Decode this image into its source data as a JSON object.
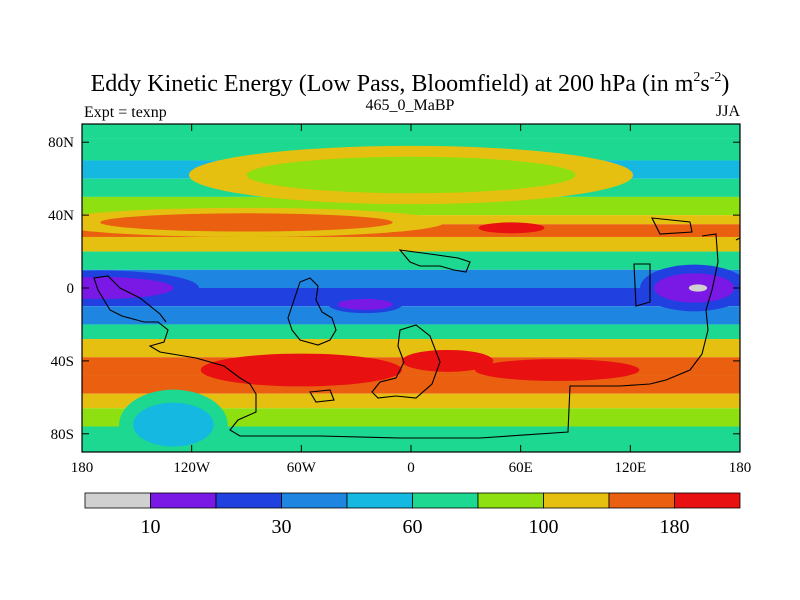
{
  "chart_data": {
    "type": "heatmap",
    "title": "Eddy Kinetic Energy (Low Pass, Bloomfield) at 200 hPa (in m",
    "title_units": {
      "sup1": "2",
      "s": "s",
      "sup2": "-2",
      "close": ")"
    },
    "left_string": "Expt = texnp",
    "center_string": "465_0_MaBP",
    "right_string": "JJA",
    "xlabel": "",
    "ylabel": "",
    "xlim": [
      -180,
      180
    ],
    "ylim": [
      -90,
      90
    ],
    "x_ticks": [
      {
        "value": -180,
        "label": "180"
      },
      {
        "value": -120,
        "label": "120W"
      },
      {
        "value": -60,
        "label": "60W"
      },
      {
        "value": 0,
        "label": "0"
      },
      {
        "value": 60,
        "label": "60E"
      },
      {
        "value": 120,
        "label": "120E"
      },
      {
        "value": 180,
        "label": "180"
      }
    ],
    "y_ticks": [
      {
        "value": 80,
        "label": "80N"
      },
      {
        "value": 40,
        "label": "40N"
      },
      {
        "value": 0,
        "label": "0"
      },
      {
        "value": -40,
        "label": "40S"
      },
      {
        "value": -80,
        "label": "80S"
      }
    ],
    "colorbar": {
      "colors": [
        "#d0d0d0",
        "#7a18e6",
        "#2040e0",
        "#1e86e0",
        "#14b8e0",
        "#1cd890",
        "#8ee010",
        "#e6c010",
        "#ea6010",
        "#e81010"
      ],
      "labels": [
        {
          "boundary": 1,
          "label": "10"
        },
        {
          "boundary": 3,
          "label": "30"
        },
        {
          "boundary": 5,
          "label": "60"
        },
        {
          "boundary": 7,
          "label": "100"
        },
        {
          "boundary": 9,
          "label": "180"
        }
      ]
    },
    "zonal_profile": [
      {
        "lat": 90,
        "level": 5
      },
      {
        "lat": 82,
        "level": 5
      },
      {
        "lat": 70,
        "level": 4
      },
      {
        "lat": 60,
        "level": 5
      },
      {
        "lat": 50,
        "level": 6
      },
      {
        "lat": 40,
        "level": 7
      },
      {
        "lat": 35,
        "level": 8
      },
      {
        "lat": 28,
        "level": 7
      },
      {
        "lat": 20,
        "level": 5
      },
      {
        "lat": 10,
        "level": 3
      },
      {
        "lat": 0,
        "level": 2
      },
      {
        "lat": -10,
        "level": 3
      },
      {
        "lat": -20,
        "level": 5
      },
      {
        "lat": -28,
        "level": 7
      },
      {
        "lat": -38,
        "level": 8
      },
      {
        "lat": -48,
        "level": 8
      },
      {
        "lat": -58,
        "level": 7
      },
      {
        "lat": -66,
        "level": 6
      },
      {
        "lat": -76,
        "level": 5
      },
      {
        "lat": -90,
        "level": 5
      }
    ],
    "features": [
      {
        "name": "nh-jet-core",
        "level": 9,
        "lon": 55,
        "lat": 33,
        "lon_radius": 18,
        "lat_radius": 3
      },
      {
        "name": "nh-jet-atlantic",
        "level": 8,
        "lon": -90,
        "lat": 36,
        "lon_radius": 80,
        "lat_radius": 5
      },
      {
        "name": "arctic-lobe",
        "level": 6,
        "lon": 0,
        "lat": 62,
        "lon_radius": 90,
        "lat_radius": 10
      },
      {
        "name": "equatorial-minimum-pacific",
        "level": 1,
        "lon": -170,
        "lat": 0,
        "lon_radius": 40,
        "lat_radius": 6
      },
      {
        "name": "equatorial-minimum-atlantic",
        "level": 1,
        "lon": -25,
        "lat": -9,
        "lon_radius": 15,
        "lat_radius": 3
      },
      {
        "name": "equatorial-minimum-westpacific",
        "level": 1,
        "lon": 155,
        "lat": 0,
        "lon_radius": 22,
        "lat_radius": 8
      },
      {
        "name": "equatorial-tip-westpacific",
        "level": 0,
        "lon": 157,
        "lat": 0,
        "lon_radius": 5,
        "lat_radius": 2
      },
      {
        "name": "sh-jet-core-west",
        "level": 9,
        "lon": -60,
        "lat": -45,
        "lon_radius": 55,
        "lat_radius": 9
      },
      {
        "name": "sh-jet-core-east",
        "level": 9,
        "lon": 80,
        "lat": -45,
        "lon_radius": 45,
        "lat_radius": 6
      },
      {
        "name": "sh-jet-core-atlantic",
        "level": 9,
        "lon": 20,
        "lat": -40,
        "lon_radius": 25,
        "lat_radius": 6
      },
      {
        "name": "southern-minimum",
        "level": 4,
        "lon": -130,
        "lat": -75,
        "lon_radius": 22,
        "lat_radius": 12
      }
    ]
  }
}
